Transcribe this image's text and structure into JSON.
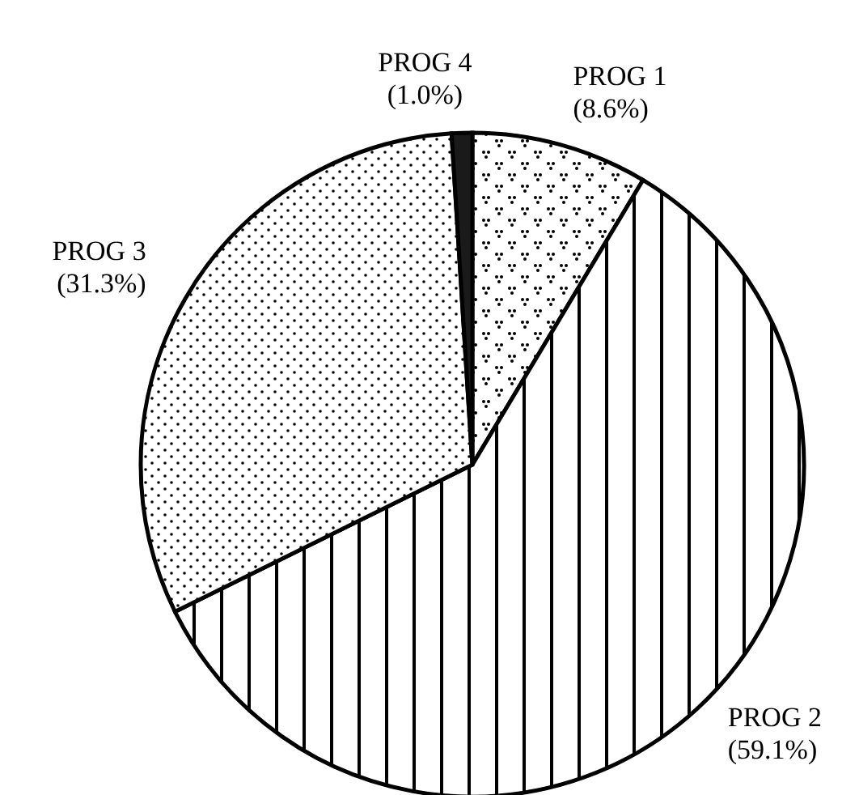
{
  "chart_data": {
    "type": "pie",
    "categories": [
      "PROG 1",
      "PROG 2",
      "PROG 3",
      "PROG 4"
    ],
    "values": [
      8.6,
      59.1,
      31.3,
      1.0
    ],
    "value_labels": [
      "(8.6%)",
      "(59.1%)",
      "(31.3%)",
      "(1.0%)"
    ],
    "colors": [
      "#ffffff",
      "#ffffff",
      "#ffffff",
      "#1a1a1a"
    ],
    "legend": false
  }
}
